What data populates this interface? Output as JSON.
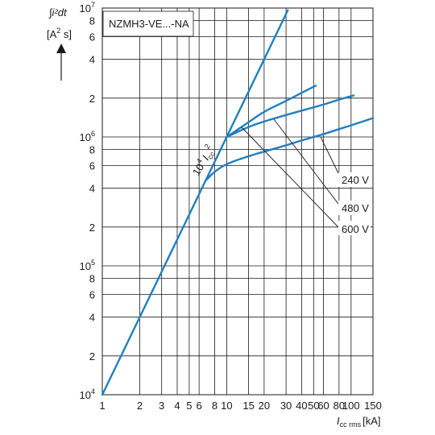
{
  "chart_data": {
    "type": "line",
    "title": "NZMH3-VE...-NA",
    "ylabel": "∫i²dt",
    "yunit": "[A² s]",
    "xlabel": "Icc rms",
    "xunit": "[kA]",
    "xscale": "log",
    "yscale": "log",
    "xlim": [
      1,
      150
    ],
    "ylim": [
      10000,
      10000000
    ],
    "grid": true,
    "x_ticks": [
      1,
      2,
      3,
      4,
      5,
      6,
      8,
      10,
      15,
      20,
      30,
      40,
      50,
      60,
      80,
      100,
      150
    ],
    "x_tick_labels": [
      "1",
      "2",
      "3",
      "4",
      "5",
      "6",
      "8",
      "10",
      "15",
      "20",
      "30",
      "40",
      "50",
      "60",
      "80",
      "100",
      "150"
    ],
    "y_ticks": [
      10000,
      20000,
      40000,
      60000,
      80000,
      100000,
      200000,
      400000,
      600000,
      800000,
      1000000,
      2000000,
      4000000,
      6000000,
      8000000,
      10000000
    ],
    "y_tick_labels": [
      {
        "base": "10",
        "exp": "4"
      },
      {
        "base": "2"
      },
      {
        "base": "4"
      },
      {
        "base": "6"
      },
      {
        "base": "8"
      },
      {
        "base": "10",
        "exp": "5"
      },
      {
        "base": "2"
      },
      {
        "base": "4"
      },
      {
        "base": "6"
      },
      {
        "base": "8"
      },
      {
        "base": "10",
        "exp": "6"
      },
      {
        "base": "2"
      },
      {
        "base": "4"
      },
      {
        "base": "6"
      },
      {
        "base": "8"
      },
      {
        "base": "10",
        "exp": "7"
      }
    ],
    "reference_line": {
      "label": "10⁴ Icc²",
      "x": [
        1,
        31
      ],
      "y": [
        10000,
        9610000
      ]
    },
    "series": [
      {
        "name": "240 V",
        "x": [
          6.8,
          8,
          10,
          15,
          20,
          30,
          40,
          60,
          80,
          100,
          150
        ],
        "y": [
          460000,
          540000,
          620000,
          710000,
          770000,
          860000,
          940000,
          1050000,
          1150000,
          1230000,
          1400000
        ]
      },
      {
        "name": "480 V",
        "x": [
          10,
          15,
          20,
          30,
          40,
          60,
          80,
          105
        ],
        "y": [
          1000000,
          1200000,
          1320000,
          1480000,
          1600000,
          1780000,
          1950000,
          2100000
        ]
      },
      {
        "name": "600 V",
        "x": [
          10,
          15,
          20,
          30,
          40,
          52
        ],
        "y": [
          1000000,
          1300000,
          1580000,
          1900000,
          2200000,
          2500000
        ]
      }
    ],
    "annotations": {
      "lines": [
        "240 V",
        "480 V",
        "600 V"
      ],
      "ref_base": "10",
      "ref_exp": "4",
      "ref_var": "I",
      "ref_sub": "cc",
      "ref_pow": "2"
    }
  },
  "colors": {
    "curve": "#1f7fc1",
    "grid": "#1a1a1a",
    "background": "#ffffff"
  },
  "labels": {
    "y_integral": "∫i²dt",
    "y_unit_open": "[A",
    "y_unit_exp": "2",
    "y_unit_close": " s]",
    "x_var": "I",
    "x_sub": "cc rms",
    "x_unit": "[kA]",
    "title": "NZMH3-VE...-NA"
  },
  "icons": {
    "y_axis_arrow": "arrow-up-icon"
  }
}
